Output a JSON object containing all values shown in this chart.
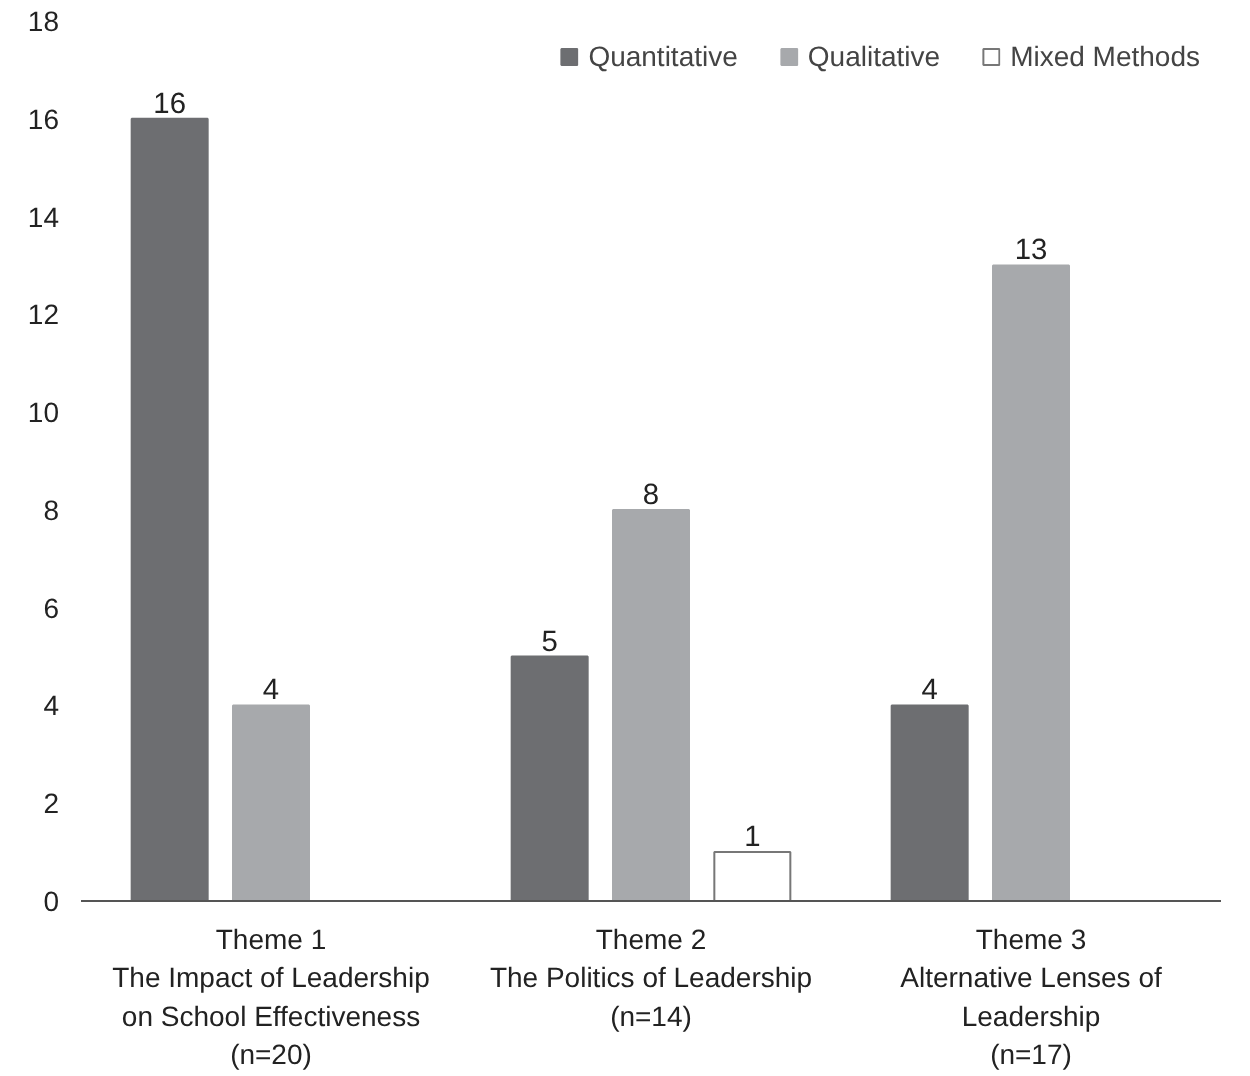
{
  "chart_data": {
    "type": "bar",
    "categories": [
      "Theme 1\nThe Impact of Leadership\non School Effectiveness\n(n=20)",
      "Theme 2\nThe Politics of Leadership\n(n=14)",
      "Theme 3\nAlternative Lenses of\nLeadership\n(n=17)"
    ],
    "series": [
      {
        "name": "Quantitative",
        "color": "#6d6e71",
        "values": [
          16,
          5,
          4
        ]
      },
      {
        "name": "Qualitative",
        "color": "#a7a9ac",
        "values": [
          4,
          8,
          13
        ]
      },
      {
        "name": "Mixed Methods",
        "color": "#ffffff",
        "values": [
          null,
          1,
          null
        ]
      }
    ],
    "ylim": [
      0,
      18
    ],
    "yticks": [
      0,
      2,
      4,
      6,
      8,
      10,
      12,
      14,
      16,
      18
    ],
    "data_labels": true,
    "legend": "top right",
    "grid": false
  }
}
